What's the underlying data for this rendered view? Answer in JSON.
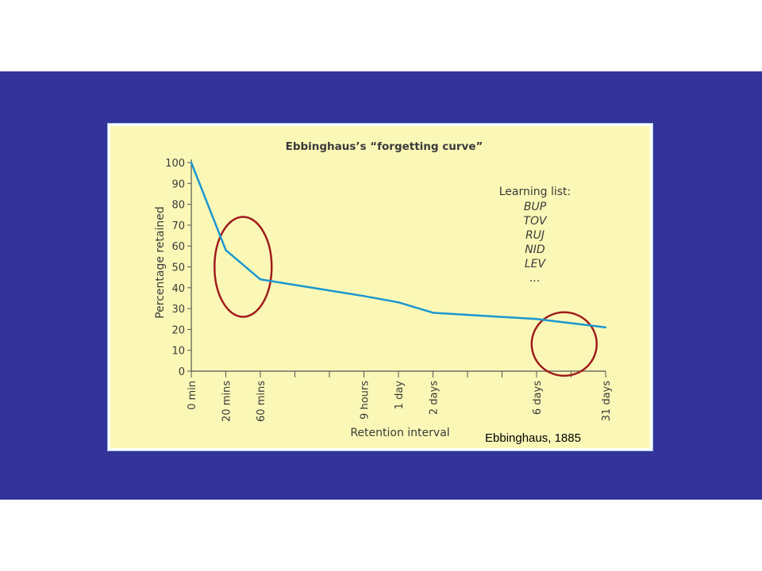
{
  "colors": {
    "background_band": "#333399",
    "panel": "#fbf8b7",
    "curve": "#1b97cf",
    "highlight_circle": "#a01c1c",
    "text": "#3a3a3a"
  },
  "chart_data": {
    "type": "line",
    "title": "Ebbinghaus’s “forgetting curve”",
    "xlabel": "Retention interval",
    "ylabel": "Percentage retained",
    "ylim": [
      0,
      100
    ],
    "y_ticks": [
      0,
      10,
      20,
      30,
      40,
      50,
      60,
      70,
      80,
      90,
      100
    ],
    "x_slot_count": 13,
    "x_tick_labels": [
      {
        "slot": 0,
        "label": "0 min"
      },
      {
        "slot": 1,
        "label": "20 mins"
      },
      {
        "slot": 2,
        "label": "60 mins"
      },
      {
        "slot": 5,
        "label": "9 hours"
      },
      {
        "slot": 6,
        "label": "1 day"
      },
      {
        "slot": 7,
        "label": "2 days"
      },
      {
        "slot": 10,
        "label": "6 days"
      },
      {
        "slot": 12,
        "label": "31 days"
      }
    ],
    "series": [
      {
        "points": [
          {
            "x": "0 min",
            "slot": 0,
            "y": 100
          },
          {
            "x": "20 mins",
            "slot": 1,
            "y": 58
          },
          {
            "x": "60 mins",
            "slot": 2,
            "y": 44
          },
          {
            "x": "9 hours",
            "slot": 5,
            "y": 36
          },
          {
            "x": "1 day",
            "slot": 6,
            "y": 33
          },
          {
            "x": "2 days",
            "slot": 7,
            "y": 28
          },
          {
            "x": "6 days",
            "slot": 10,
            "y": 25
          },
          {
            "x": "31 days",
            "slot": 12,
            "y": 21
          }
        ]
      }
    ],
    "highlights": [
      {
        "slot": 1.5,
        "y": 50
      },
      {
        "slot": 10.8,
        "y": 13
      }
    ],
    "annotation": {
      "heading": "Learning list:",
      "items": [
        "BUP",
        "TOV",
        "RUJ",
        "NID",
        "LEV",
        "..."
      ]
    },
    "grid": false,
    "legend": "none"
  },
  "caption": "Ebbinghaus, 1885"
}
